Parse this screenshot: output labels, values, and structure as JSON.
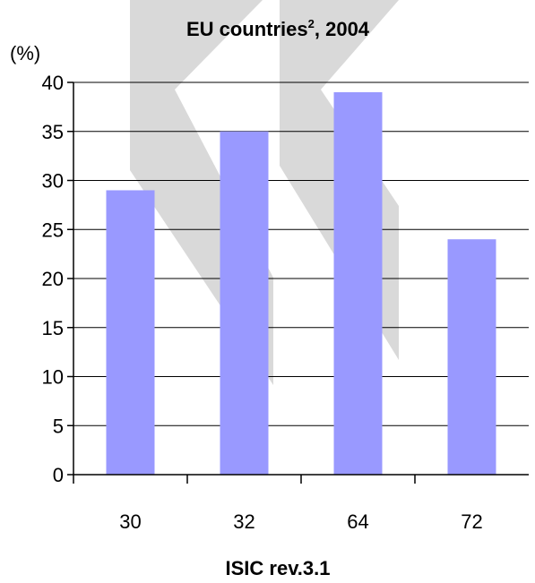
{
  "chart_data": {
    "type": "bar",
    "title": "EU countries",
    "title_superscript": "2",
    "title_suffix": ", 2004",
    "ylabel": "(%)",
    "xlabel": "ISIC rev.3.1",
    "categories": [
      "30",
      "32",
      "64",
      "72"
    ],
    "values": [
      29,
      35,
      39,
      24
    ],
    "ylim": [
      0,
      40
    ],
    "yticks": [
      0,
      5,
      10,
      15,
      20,
      25,
      30,
      35,
      40
    ],
    "grid": true,
    "bar_color": "#9999ff",
    "gridline_color": "#000000",
    "watermark_color": "#d9d9d9"
  }
}
